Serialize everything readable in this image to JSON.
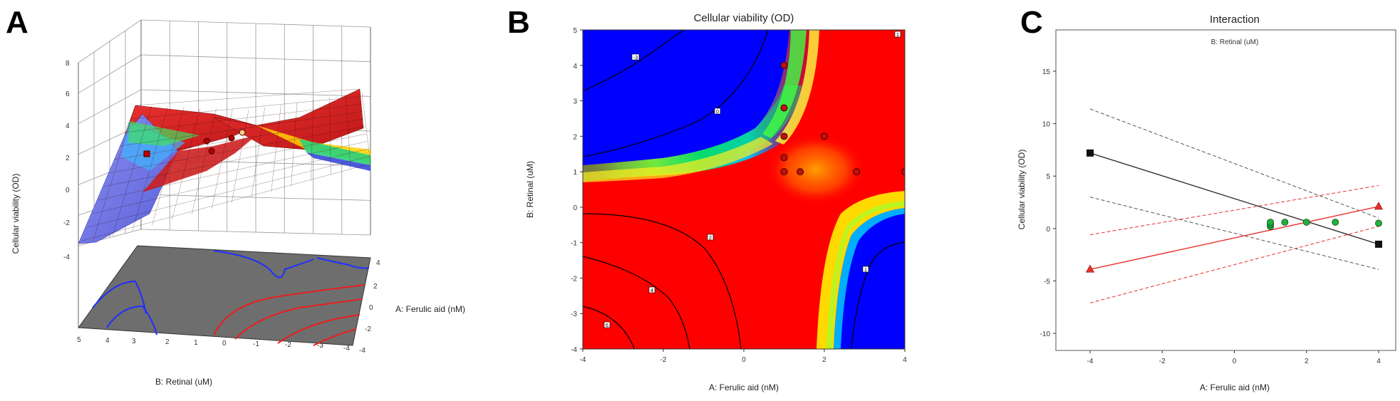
{
  "panels": {
    "a": {
      "letter": "A"
    },
    "b": {
      "letter": "B"
    },
    "c": {
      "letter": "C"
    }
  },
  "chart_data": [
    {
      "type": "surface3d",
      "panel": "A",
      "title": "",
      "xlabel": "A: Ferulic aid (nM)",
      "ylabel": "B: Retinal (uM)",
      "zlabel": "Cellular viability (OD)",
      "xlim": [
        -4,
        4
      ],
      "ylim": [
        -4,
        5
      ],
      "zlim": [
        -4,
        8
      ],
      "x_ticks": [
        "-4",
        "-3",
        "-2",
        "-1",
        "0",
        "1",
        "2",
        "3",
        "4"
      ],
      "x_side_ticks": [
        "4",
        "2",
        "0",
        "-2",
        "-4"
      ],
      "y_ticks": [
        "5",
        "4",
        "3",
        "2",
        "1",
        "0",
        "-1",
        "-2",
        "-3",
        "-4"
      ],
      "z_ticks": [
        "8",
        "6",
        "4",
        "2",
        "0",
        "-2",
        "-4"
      ],
      "design_points": [
        {
          "x": -1,
          "y": 1,
          "z": 2.3
        },
        {
          "x": -1,
          "y": 2,
          "z": 3.6
        },
        {
          "x": -1,
          "y": 3,
          "z": 4.0
        },
        {
          "x": 0,
          "y": 2,
          "z": 3.2
        },
        {
          "x": 1,
          "y": 1.5,
          "z": 3.8
        }
      ]
    },
    {
      "type": "contour",
      "panel": "B",
      "title": "Cellular viability (OD)",
      "xlabel": "A: Ferulic aid (nM)",
      "ylabel": "B: Retinal (uM)",
      "xlim": [
        -4,
        4
      ],
      "ylim": [
        -4,
        5
      ],
      "x_ticks": [
        "-4",
        "-2",
        "0",
        "2",
        "4"
      ],
      "y_ticks": [
        "-4",
        "-3",
        "-2",
        "-1",
        "0",
        "1",
        "2",
        "3",
        "4",
        "5"
      ],
      "contour_labels": [
        "-3",
        "0",
        "1",
        "2",
        "4",
        "6",
        "1"
      ],
      "design_points": [
        {
          "x": 1,
          "y": 4
        },
        {
          "x": 1,
          "y": 2.8
        },
        {
          "x": 1,
          "y": 2
        },
        {
          "x": 1,
          "y": 1.4
        },
        {
          "x": 1,
          "y": 1
        },
        {
          "x": 1.4,
          "y": 1
        },
        {
          "x": 2,
          "y": 2
        },
        {
          "x": 2.8,
          "y": 1
        },
        {
          "x": 4,
          "y": 1
        }
      ]
    },
    {
      "type": "line",
      "panel": "C",
      "title": "Interaction",
      "subtitle": "B: Retinal (uM)",
      "xlabel": "A: Ferulic aid (nM)",
      "ylabel": "Cellular viability (OD)",
      "xlim": [
        -4,
        4
      ],
      "ylim": [
        -10,
        15
      ],
      "x_ticks": [
        "-4",
        "-2",
        "0",
        "2",
        "4"
      ],
      "y_ticks": [
        "15",
        "10",
        "5",
        "0",
        "-5",
        "-10"
      ],
      "series": [
        {
          "color": "#333333",
          "marker": "square",
          "x": [
            -4,
            4
          ],
          "y": [
            7.2,
            -1.5
          ]
        },
        {
          "color": "#e8302a",
          "marker": "triangle",
          "x": [
            -4,
            4
          ],
          "y": [
            -3.9,
            2.1
          ]
        }
      ],
      "confidence_bands": [
        {
          "color": "#555555",
          "x": [
            -4,
            4
          ],
          "upper": [
            11.4,
            1.0
          ],
          "lower": [
            3.0,
            -3.9
          ]
        },
        {
          "color": "#e8302a",
          "x": [
            -4,
            4
          ],
          "upper": [
            -0.6,
            4.1
          ],
          "lower": [
            -7.1,
            0.2
          ]
        }
      ],
      "design_points": [
        {
          "x": 1,
          "y": 0.2
        },
        {
          "x": 1,
          "y": 0.4
        },
        {
          "x": 1,
          "y": 0.6
        },
        {
          "x": 1.4,
          "y": 0.6
        },
        {
          "x": 2,
          "y": 0.6
        },
        {
          "x": 2.8,
          "y": 0.6
        },
        {
          "x": 4,
          "y": 0.5
        }
      ]
    }
  ]
}
